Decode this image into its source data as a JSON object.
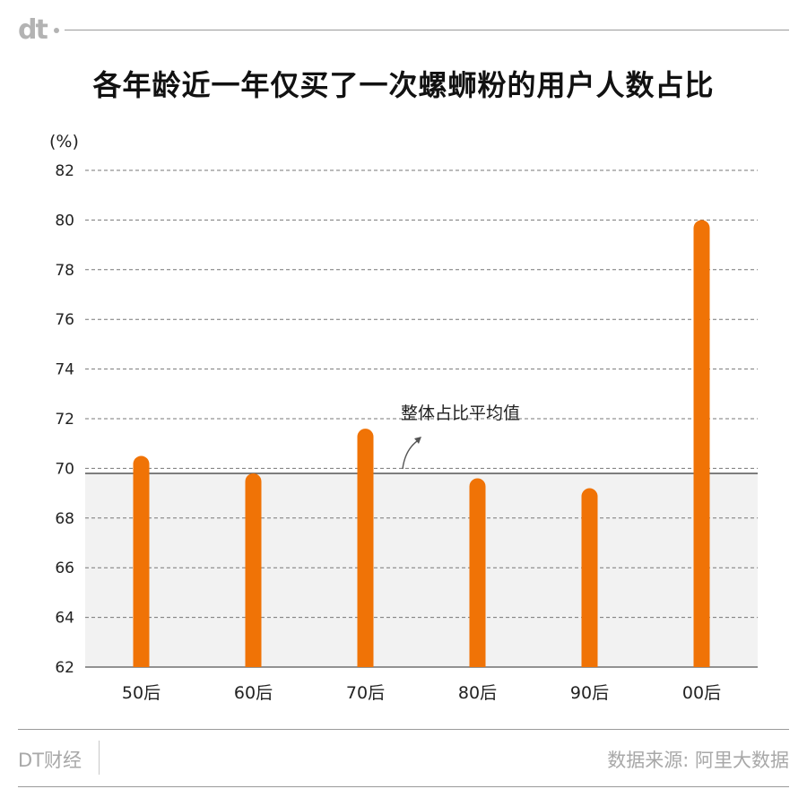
{
  "header": {
    "logo_text": "dt"
  },
  "title": "各年龄近一年仅买了一次螺蛳粉的用户人数占比",
  "footer": {
    "brand": "DT财经",
    "source": "数据来源: 阿里大数据"
  },
  "colors": {
    "bar": "#f07306",
    "average_band": "#f2f2f2",
    "average_line": "#555555",
    "grid": "#777777"
  },
  "chart_data": {
    "type": "bar",
    "title": "各年龄近一年仅买了一次螺蛳粉的用户人数占比",
    "ylabel": "(%)",
    "xlabel": "",
    "categories": [
      "50后",
      "60后",
      "70后",
      "80后",
      "90后",
      "00后"
    ],
    "values": [
      70.5,
      69.8,
      71.6,
      69.6,
      69.2,
      80.0
    ],
    "ylim": [
      62,
      82
    ],
    "yticks": [
      62,
      64,
      66,
      68,
      70,
      72,
      74,
      76,
      78,
      80,
      82
    ],
    "grid": true,
    "average": {
      "label": "整体占比平均值",
      "value": 69.8
    }
  }
}
